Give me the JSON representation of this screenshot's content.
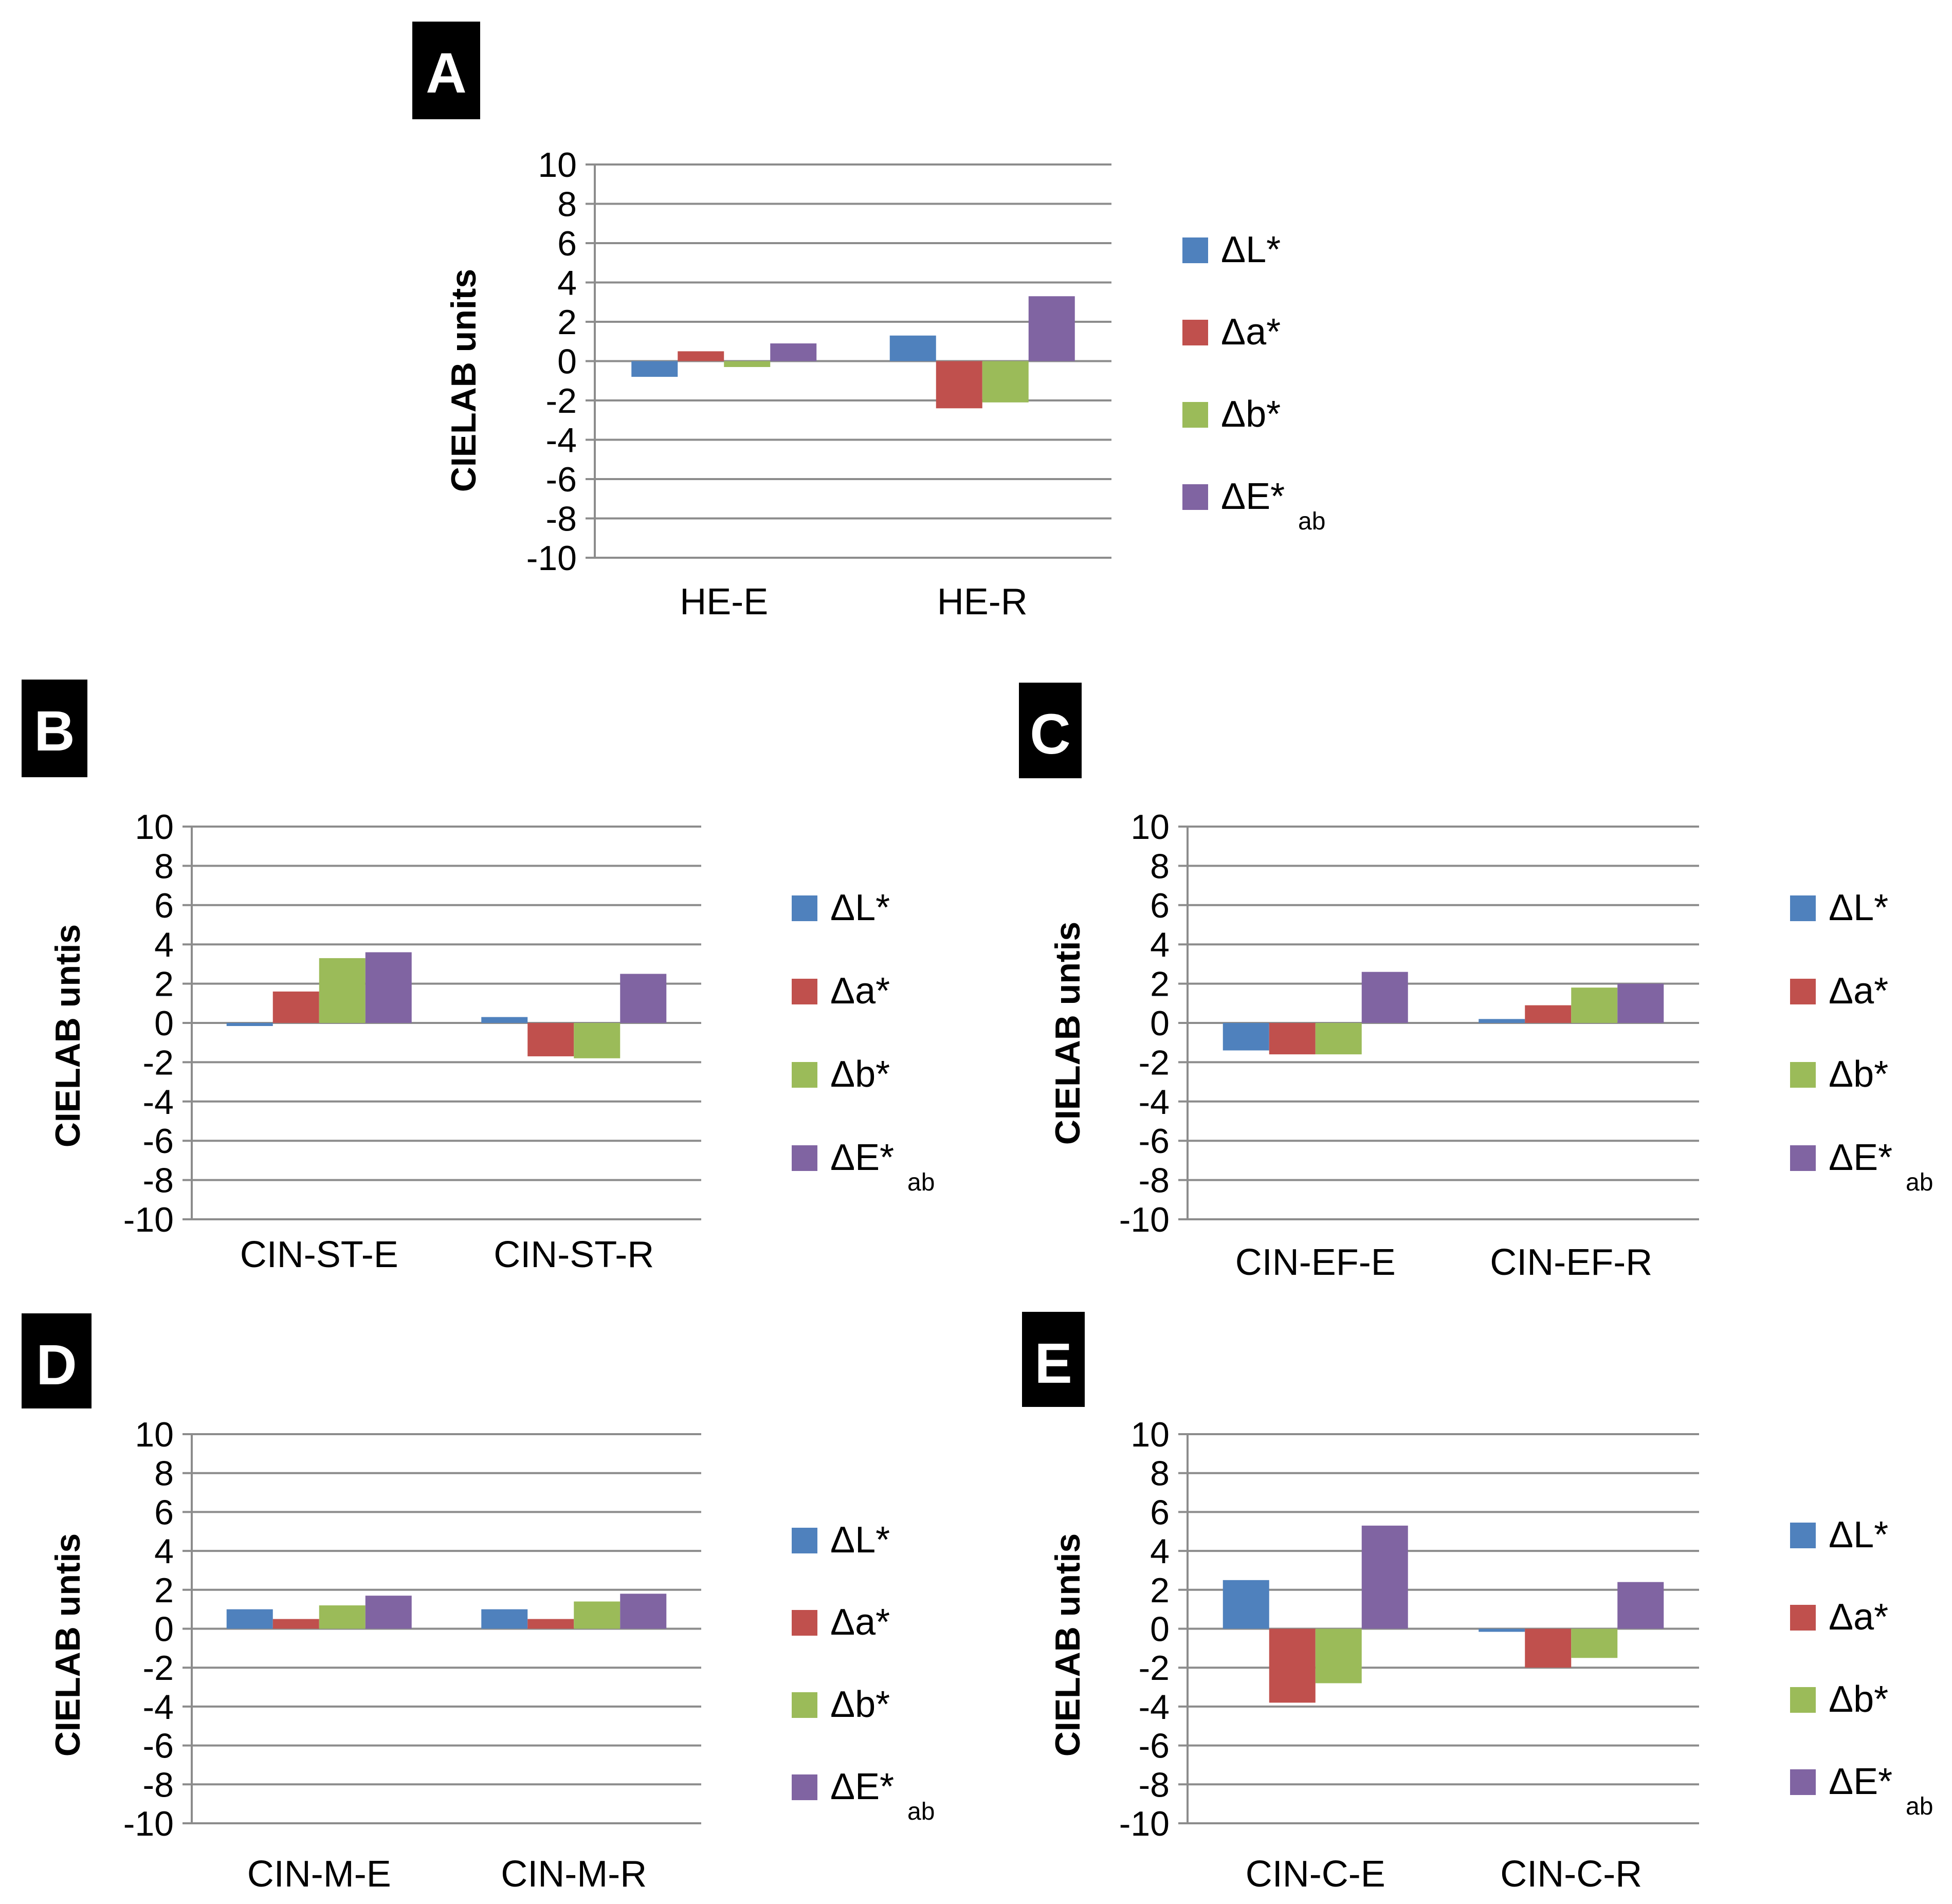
{
  "series_colors": [
    "#4f81bd",
    "#c0504d",
    "#9bbb59",
    "#8064a2"
  ],
  "chart_data": [
    {
      "panel": "A",
      "type": "bar",
      "ylabel": "CIELAB units",
      "ylim": [
        -10,
        10
      ],
      "yticks": [
        "10",
        "8",
        "6",
        "4",
        "2",
        "0",
        "-2",
        "-4",
        "-6",
        "-8",
        "-10"
      ],
      "categories": [
        "HE-E",
        "HE-R"
      ],
      "legend": [
        {
          "main": "ΔL*",
          "sub": ""
        },
        {
          "main": "Δa*",
          "sub": ""
        },
        {
          "main": "Δb*",
          "sub": ""
        },
        {
          "main": "ΔE*",
          "sub": "ab"
        }
      ],
      "series": [
        {
          "name": "ΔL*",
          "values": [
            -0.8,
            1.3
          ]
        },
        {
          "name": "Δa*",
          "values": [
            0.5,
            -2.4
          ]
        },
        {
          "name": "Δb*",
          "values": [
            -0.3,
            -2.1
          ]
        },
        {
          "name": "ΔE*ab",
          "values": [
            0.9,
            3.3
          ]
        }
      ]
    },
    {
      "panel": "B",
      "type": "bar",
      "ylabel": "CIELAB untis",
      "ylim": [
        -10,
        10
      ],
      "yticks": [
        "10",
        "8",
        "6",
        "4",
        "2",
        "0",
        "-2",
        "-4",
        "-6",
        "-8",
        "-10"
      ],
      "categories": [
        "CIN-ST-E",
        "CIN-ST-R"
      ],
      "legend": [
        {
          "main": "ΔL*",
          "sub": ""
        },
        {
          "main": "Δa*",
          "sub": ""
        },
        {
          "main": "Δb*",
          "sub": ""
        },
        {
          "main": "ΔE*",
          "sub": "ab"
        }
      ],
      "series": [
        {
          "name": "ΔL*",
          "values": [
            -0.1,
            0.3
          ]
        },
        {
          "name": "Δa*",
          "values": [
            1.6,
            -1.7
          ]
        },
        {
          "name": "Δb*",
          "values": [
            3.3,
            -1.8
          ]
        },
        {
          "name": "ΔE*ab",
          "values": [
            3.6,
            2.5
          ]
        }
      ]
    },
    {
      "panel": "C",
      "type": "bar",
      "ylabel": "CIELAB untis",
      "ylim": [
        -10,
        10
      ],
      "yticks": [
        "10",
        "8",
        "6",
        "4",
        "2",
        "0",
        "-2",
        "-4",
        "-6",
        "-8",
        "-10"
      ],
      "categories": [
        "CIN-EF-E",
        "CIN-EF-R"
      ],
      "legend": [
        {
          "main": "ΔL*",
          "sub": ""
        },
        {
          "main": "Δa*",
          "sub": ""
        },
        {
          "main": "Δb*",
          "sub": ""
        },
        {
          "main": "ΔE*",
          "sub": "ab"
        }
      ],
      "series": [
        {
          "name": "ΔL*",
          "values": [
            -1.4,
            0.2
          ]
        },
        {
          "name": "Δa*",
          "values": [
            -1.6,
            0.9
          ]
        },
        {
          "name": "Δb*",
          "values": [
            -1.6,
            1.8
          ]
        },
        {
          "name": "ΔE*ab",
          "values": [
            2.6,
            2.0
          ]
        }
      ]
    },
    {
      "panel": "D",
      "type": "bar",
      "ylabel": "CIELAB untis",
      "ylim": [
        -10,
        10
      ],
      "yticks": [
        "10",
        "8",
        "6",
        "4",
        "2",
        "0",
        "-2",
        "-4",
        "-6",
        "-8",
        "-10"
      ],
      "categories": [
        "CIN-M-E",
        "CIN-M-R"
      ],
      "legend": [
        {
          "main": "ΔL*",
          "sub": ""
        },
        {
          "main": "Δa*",
          "sub": ""
        },
        {
          "main": "Δb*",
          "sub": ""
        },
        {
          "main": "ΔE*",
          "sub": "ab"
        }
      ],
      "series": [
        {
          "name": "ΔL*",
          "values": [
            1.0,
            1.0
          ]
        },
        {
          "name": "Δa*",
          "values": [
            0.5,
            0.5
          ]
        },
        {
          "name": "Δb*",
          "values": [
            1.2,
            1.4
          ]
        },
        {
          "name": "ΔE*ab",
          "values": [
            1.7,
            1.8
          ]
        }
      ]
    },
    {
      "panel": "E",
      "type": "bar",
      "ylabel": "CIELAB untis",
      "ylim": [
        -10,
        10
      ],
      "yticks": [
        "10",
        "8",
        "6",
        "4",
        "2",
        "0",
        "-2",
        "-4",
        "-6",
        "-8",
        "-10"
      ],
      "categories": [
        "CIN-C-E",
        "CIN-C-R"
      ],
      "legend": [
        {
          "main": "ΔL*",
          "sub": ""
        },
        {
          "main": "Δa*",
          "sub": ""
        },
        {
          "main": "Δb*",
          "sub": ""
        },
        {
          "main": "ΔE*",
          "sub": "ab"
        }
      ],
      "series": [
        {
          "name": "ΔL*",
          "values": [
            2.5,
            -0.05
          ]
        },
        {
          "name": "Δa*",
          "values": [
            -3.8,
            -2.0
          ]
        },
        {
          "name": "Δb*",
          "values": [
            -2.8,
            -1.5
          ]
        },
        {
          "name": "ΔE*ab",
          "values": [
            5.3,
            2.4
          ]
        }
      ]
    }
  ]
}
